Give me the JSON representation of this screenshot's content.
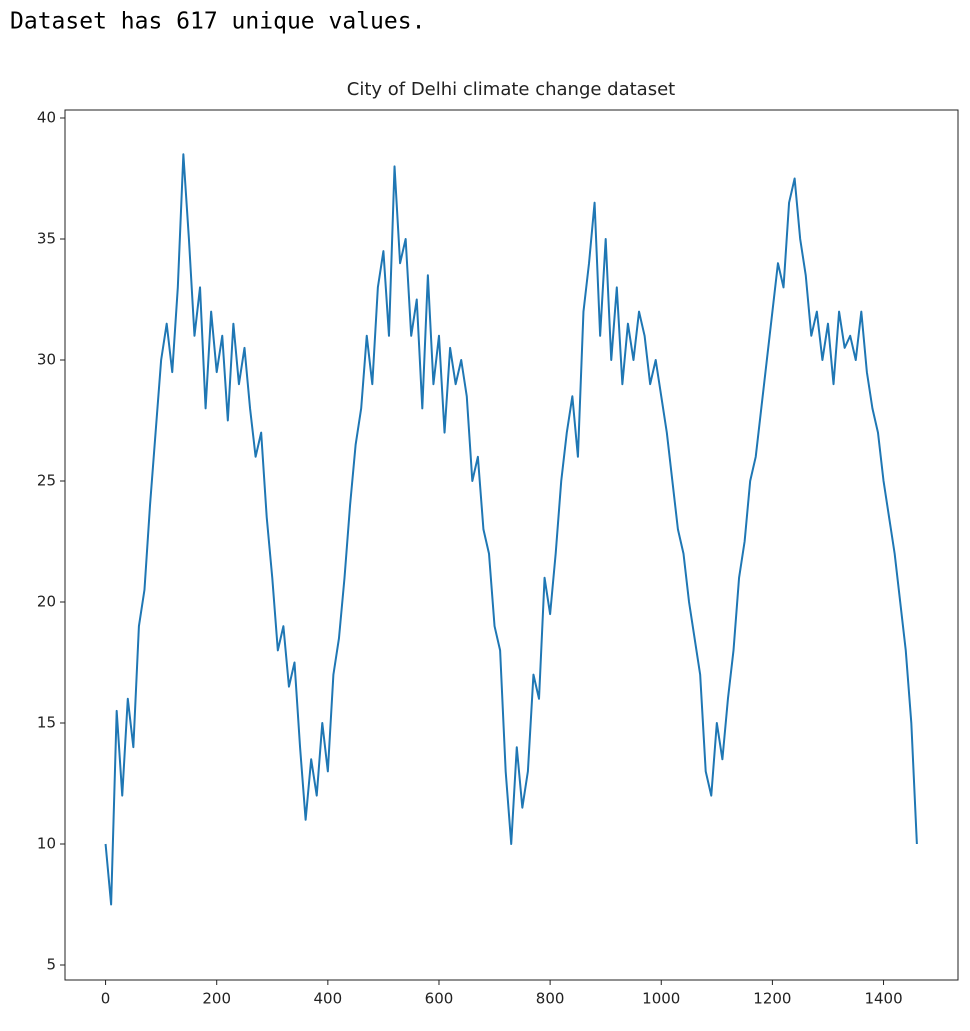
{
  "output_text": "Dataset has 617 unique values.",
  "chart_data": {
    "type": "line",
    "title": "City of Delhi climate change dataset",
    "color": "#1f77b4",
    "x": [
      0,
      10,
      20,
      30,
      40,
      50,
      60,
      70,
      80,
      90,
      100,
      110,
      120,
      130,
      140,
      150,
      160,
      170,
      180,
      190,
      200,
      210,
      220,
      230,
      240,
      250,
      260,
      270,
      280,
      290,
      300,
      310,
      320,
      330,
      340,
      350,
      360,
      370,
      380,
      390,
      400,
      410,
      420,
      430,
      440,
      450,
      460,
      470,
      480,
      490,
      500,
      510,
      520,
      530,
      540,
      550,
      560,
      570,
      580,
      590,
      600,
      610,
      620,
      630,
      640,
      650,
      660,
      670,
      680,
      690,
      700,
      710,
      720,
      730,
      740,
      750,
      760,
      770,
      780,
      790,
      800,
      810,
      820,
      830,
      840,
      850,
      860,
      870,
      880,
      890,
      900,
      910,
      920,
      930,
      940,
      950,
      960,
      970,
      980,
      990,
      1000,
      1010,
      1020,
      1030,
      1040,
      1050,
      1060,
      1070,
      1080,
      1090,
      1100,
      1110,
      1120,
      1130,
      1140,
      1150,
      1160,
      1170,
      1180,
      1190,
      1200,
      1210,
      1220,
      1230,
      1240,
      1250,
      1260,
      1270,
      1280,
      1290,
      1300,
      1310,
      1320,
      1330,
      1340,
      1350,
      1360,
      1370,
      1380,
      1390,
      1400,
      1410,
      1420,
      1430,
      1440,
      1450,
      1460
    ],
    "values": [
      10,
      7.5,
      15.5,
      12,
      16,
      14,
      19,
      20.5,
      24,
      27,
      30,
      31.5,
      29.5,
      33,
      38.5,
      35,
      31,
      33,
      28,
      32,
      29.5,
      31,
      27.5,
      31.5,
      29,
      30.5,
      28,
      26,
      27,
      23.5,
      21,
      18,
      19,
      16.5,
      17.5,
      14,
      11,
      13.5,
      12,
      15,
      13,
      17,
      18.5,
      21,
      24,
      26.5,
      28,
      31,
      29,
      33,
      34.5,
      31,
      38,
      34,
      35,
      31,
      32.5,
      28,
      33.5,
      29,
      31,
      27,
      30.5,
      29,
      30,
      28.5,
      25,
      26,
      23,
      22,
      19,
      18,
      13,
      10,
      14,
      11.5,
      13,
      17,
      16,
      21,
      19.5,
      22,
      25,
      27,
      28.5,
      26,
      32,
      34,
      36.5,
      31,
      35,
      30,
      33,
      29,
      31.5,
      30,
      32,
      31,
      29,
      30,
      28.5,
      27,
      25,
      23,
      22,
      20,
      18.5,
      17,
      13,
      12,
      15,
      13.5,
      16,
      18,
      21,
      22.5,
      25,
      26,
      28,
      30,
      32,
      34,
      33,
      36.5,
      37.5,
      35,
      33.5,
      31,
      32,
      30,
      31.5,
      29,
      32,
      30.5,
      31,
      30,
      32,
      29.5,
      28,
      27,
      25,
      23.5,
      22,
      20,
      18,
      15,
      10
    ],
    "xlim": [
      -73,
      1534
    ],
    "ylim": [
      4.38,
      40.33
    ],
    "xticks": [
      0,
      200,
      400,
      600,
      800,
      1000,
      1200,
      1400
    ],
    "yticks": [
      5,
      10,
      15,
      20,
      25,
      30,
      35,
      40
    ]
  }
}
